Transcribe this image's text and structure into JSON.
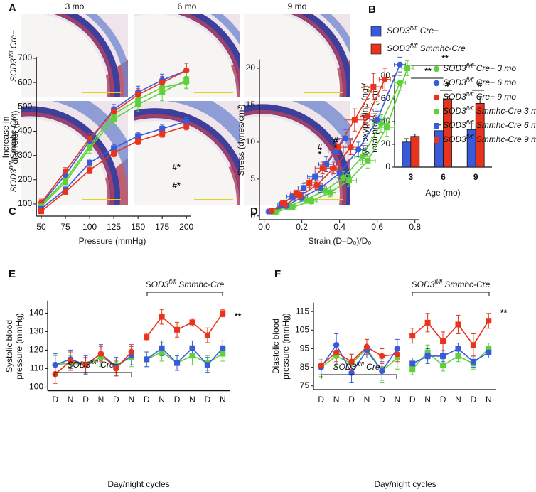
{
  "figure_a": {
    "label": "A",
    "columns": [
      "3 mo",
      "6 mo",
      "9 mo"
    ],
    "rows": [
      "SOD3fl/fl Cre−",
      "SOD3fl/fl Smmhc-Cre"
    ]
  },
  "chart_data": [
    {
      "panel": "B",
      "type": "bar",
      "categories": [
        "3",
        "6",
        "9"
      ],
      "series": [
        {
          "name": "SOD3fl/fl Cre−",
          "color": "#3a5bd9",
          "values": [
            22,
            32,
            33
          ],
          "errors": [
            3,
            5,
            5
          ]
        },
        {
          "name": "SOD3fl/fl Smmhc-Cre",
          "color": "#e8341c",
          "values": [
            27,
            60,
            56
          ],
          "errors": [
            2,
            2,
            6
          ]
        }
      ],
      "ylim": [
        0,
        80
      ],
      "yticks": [
        0,
        20,
        40,
        60,
        80
      ],
      "ylabel": [
        "Hydroxyproline (ng)/",
        "total protein (μg)"
      ],
      "xlabel": "Age (mo)",
      "annotations": [
        {
          "text": "**"
        },
        {
          "text": "**"
        },
        {
          "text": "#"
        },
        {
          "text": "#"
        }
      ]
    },
    {
      "panel": "C",
      "type": "line",
      "x": [
        50,
        75,
        100,
        125,
        150,
        175,
        200
      ],
      "xlim": [
        45,
        205
      ],
      "xticks": [
        50,
        75,
        100,
        125,
        150,
        175,
        200
      ],
      "ylim": [
        50,
        700
      ],
      "yticks": [
        100,
        200,
        300,
        400,
        500,
        600,
        700
      ],
      "ylabel": [
        "Increase in",
        "diameter (μm)"
      ],
      "xlabel": "Pressure (mmHg)",
      "series": [
        {
          "color": "#5ed13a",
          "marker": "circle",
          "values": [
            95,
            200,
            340,
            470,
            530,
            580,
            600
          ],
          "errors": [
            15,
            15,
            20,
            25,
            25,
            30,
            25
          ]
        },
        {
          "color": "#3a5bd9",
          "marker": "circle",
          "values": [
            100,
            220,
            360,
            490,
            560,
            610,
            650
          ],
          "errors": [
            15,
            15,
            20,
            20,
            25,
            25,
            30
          ]
        },
        {
          "color": "#e8341c",
          "marker": "circle",
          "values": [
            105,
            235,
            370,
            480,
            550,
            600,
            650
          ],
          "errors": [
            15,
            15,
            20,
            20,
            25,
            25,
            30
          ]
        },
        {
          "color": "#5ed13a",
          "marker": "square",
          "values": [
            90,
            190,
            330,
            450,
            510,
            560,
            610
          ],
          "errors": [
            15,
            15,
            20,
            25,
            30,
            35,
            30
          ]
        },
        {
          "color": "#3a5bd9",
          "marker": "square",
          "values": [
            80,
            160,
            270,
            330,
            380,
            410,
            440
          ],
          "errors": [
            10,
            10,
            15,
            15,
            15,
            15,
            15
          ]
        },
        {
          "color": "#e8341c",
          "marker": "square",
          "values": [
            70,
            150,
            240,
            310,
            360,
            390,
            420
          ],
          "errors": [
            10,
            10,
            15,
            15,
            15,
            15,
            15
          ]
        }
      ],
      "annotations": [
        {
          "text": "#*",
          "color": "#3a5bd9"
        },
        {
          "text": "#*",
          "color": "#e8341c"
        }
      ]
    },
    {
      "panel": "D",
      "type": "line",
      "xlim": [
        -0.025,
        0.82
      ],
      "xticks": [
        {
          "value": 0,
          "label": "0.0"
        },
        0.2,
        0.4,
        0.6,
        0.8
      ],
      "ylim": [
        -0.5,
        21
      ],
      "yticks": [
        0,
        5,
        10,
        15,
        20
      ],
      "ylabel": [
        "Stress (dynes/cm²)"
      ],
      "xlabel": "Strain (D–D₀)/D₀",
      "series": [
        {
          "name": "SOD3fl/fl Cre− 3 mo",
          "color": "#5ed13a",
          "marker": "circle",
          "x": [
            0.05,
            0.13,
            0.22,
            0.32,
            0.42,
            0.52,
            0.62,
            0.72
          ],
          "values": [
            0.6,
            1.3,
            2.2,
            3.4,
            5.2,
            8,
            12.5,
            18
          ],
          "errors": [
            0.3,
            0.4,
            0.5,
            0.6,
            0.8,
            1,
            1.2,
            1
          ],
          "x_errors": [
            0.02,
            0.02,
            0.03,
            0.03,
            0.04,
            0.04,
            0.04,
            0.03
          ]
        },
        {
          "name": "SOD3fl/fl Cre− 6 mo",
          "color": "#3a5bd9",
          "marker": "circle",
          "x": [
            0.04,
            0.12,
            0.2,
            0.3,
            0.4,
            0.5,
            0.6,
            0.72
          ],
          "values": [
            0.6,
            1.4,
            2.5,
            3.8,
            5.8,
            9,
            13,
            20.5
          ],
          "errors": [
            0.3,
            0.4,
            0.5,
            0.6,
            0.8,
            1,
            1.2,
            1
          ],
          "x_errors": [
            0.02,
            0.02,
            0.03,
            0.03,
            0.04,
            0.04,
            0.04,
            0.03
          ]
        },
        {
          "name": "SOD3fl/fl Cre− 9 mo",
          "color": "#e8341c",
          "marker": "circle",
          "x": [
            0.04,
            0.11,
            0.19,
            0.28,
            0.37,
            0.46,
            0.55,
            0.64
          ],
          "values": [
            0.7,
            1.5,
            2.7,
            4.2,
            6.5,
            9.3,
            13.5,
            18.5
          ],
          "errors": [
            0.3,
            0.4,
            0.5,
            0.6,
            0.8,
            1,
            1.2,
            1.5
          ],
          "x_errors": [
            0.02,
            0.02,
            0.03,
            0.03,
            0.04,
            0.04,
            0.04,
            0.03
          ]
        },
        {
          "name": "SOD3fl/fl Smmhc-Cre 3 mo",
          "color": "#5ed13a",
          "marker": "square",
          "x": [
            0.06,
            0.15,
            0.25,
            0.35,
            0.45,
            0.55,
            0.65,
            0.76
          ],
          "values": [
            0.5,
            1.2,
            2,
            3.2,
            4.8,
            7.5,
            12,
            20
          ],
          "errors": [
            0.3,
            0.4,
            0.5,
            0.6,
            0.8,
            1,
            1.2,
            1
          ],
          "x_errors": [
            0.02,
            0.02,
            0.03,
            0.03,
            0.04,
            0.04,
            0.04,
            0.03
          ]
        },
        {
          "name": "SOD3fl/fl Smmhc-Cre 6 mo",
          "color": "#3a5bd9",
          "marker": "square",
          "x": [
            0.03,
            0.09,
            0.15,
            0.21,
            0.27,
            0.33,
            0.38,
            0.43
          ],
          "values": [
            0.6,
            1.5,
            2.6,
            3.8,
            5.3,
            7,
            8.8,
            10.5
          ],
          "errors": [
            0.3,
            0.4,
            0.5,
            0.6,
            0.8,
            1,
            1.2,
            1.2
          ],
          "x_errors": [
            0.02,
            0.02,
            0.03,
            0.03,
            0.04,
            0.04,
            0.04,
            0.04
          ]
        },
        {
          "name": "SOD3fl/fl Smmhc-Cre 9 mo",
          "color": "#e8341c",
          "marker": "square",
          "x": [
            0.04,
            0.1,
            0.17,
            0.24,
            0.31,
            0.39,
            0.48,
            0.58
          ],
          "values": [
            0.7,
            1.7,
            3,
            4.5,
            6.5,
            9.3,
            13,
            17.5
          ],
          "errors": [
            0.3,
            0.4,
            0.5,
            0.6,
            0.8,
            1,
            1.5,
            1.8
          ],
          "x_errors": [
            0.02,
            0.02,
            0.03,
            0.03,
            0.04,
            0.04,
            0.05,
            0.05
          ]
        }
      ],
      "annotations": [
        {
          "text": "#",
          "color": "#3a5bd9"
        },
        {
          "text": "*",
          "color": "#3a5bd9"
        },
        {
          "text": "#",
          "color": "#e8341c"
        },
        {
          "text": "*",
          "color": "#e8341c"
        }
      ]
    },
    {
      "panel": "E",
      "type": "line",
      "categories": [
        "D",
        "N",
        "D",
        "N",
        "D",
        "N",
        "D",
        "N",
        "D",
        "N",
        "D",
        "N"
      ],
      "ylim": [
        98,
        146
      ],
      "yticks": [
        100,
        110,
        120,
        130,
        140
      ],
      "ylabel": [
        "Systolic blood",
        "pressure (mmHg)"
      ],
      "xlabel": "Day/night cycles",
      "brackets": [
        "SOD3fl/fl Cre−",
        "SOD3fl/fl Smmhc-Cre"
      ],
      "series": [
        {
          "color": "#5ed13a",
          "marker": "circle",
          "values": [
            112,
            113,
            112,
            116,
            112,
            116,
            null,
            null,
            null,
            null,
            null,
            null
          ],
          "errors": [
            5,
            4,
            5,
            5,
            4,
            5,
            null,
            null,
            null,
            null,
            null,
            null
          ]
        },
        {
          "color": "#3a5bd9",
          "marker": "circle",
          "values": [
            112,
            115,
            112,
            118,
            111,
            117,
            null,
            null,
            null,
            null,
            null,
            null
          ],
          "errors": [
            6,
            5,
            5,
            5,
            5,
            5,
            null,
            null,
            null,
            null,
            null,
            null
          ]
        },
        {
          "color": "#e8341c",
          "marker": "circle",
          "values": [
            107,
            114,
            112,
            118,
            110,
            119,
            null,
            null,
            null,
            null,
            null,
            null
          ],
          "errors": [
            5,
            5,
            4,
            4,
            4,
            4,
            null,
            null,
            null,
            null,
            null,
            null
          ]
        },
        {
          "color": "#5ed13a",
          "marker": "square",
          "values": [
            null,
            null,
            null,
            null,
            null,
            null,
            115,
            119,
            113,
            117,
            113,
            118
          ],
          "errors": [
            null,
            null,
            null,
            null,
            null,
            null,
            4,
            5,
            4,
            5,
            4,
            4
          ]
        },
        {
          "color": "#3a5bd9",
          "marker": "square",
          "values": [
            null,
            null,
            null,
            null,
            null,
            null,
            115,
            121,
            113,
            121,
            112,
            121
          ],
          "errors": [
            null,
            null,
            null,
            null,
            null,
            null,
            4,
            4,
            4,
            4,
            4,
            4
          ]
        },
        {
          "color": "#e8341c",
          "marker": "square",
          "values": [
            null,
            null,
            null,
            null,
            null,
            null,
            127,
            138,
            131,
            135,
            128,
            140
          ],
          "errors": [
            null,
            null,
            null,
            null,
            null,
            null,
            2,
            4,
            4,
            2,
            4,
            2
          ]
        }
      ],
      "annotations": [
        {
          "text": "**"
        }
      ]
    },
    {
      "panel": "F",
      "type": "line",
      "categories": [
        "D",
        "N",
        "D",
        "N",
        "D",
        "N",
        "D",
        "N",
        "D",
        "N",
        "D",
        "N"
      ],
      "ylim": [
        73,
        119
      ],
      "yticks": [
        75,
        85,
        95,
        105,
        115
      ],
      "ylabel": [
        "Diastolic blood",
        "pressure (mmHg)"
      ],
      "xlabel": "Day/night cycles",
      "brackets": [
        "SOD3fl/fl Cre−",
        "SOD3fl/fl Smmhc-Cre"
      ],
      "series": [
        {
          "color": "#5ed13a",
          "marker": "circle",
          "values": [
            85,
            91,
            87,
            95,
            83,
            90,
            null,
            null,
            null,
            null,
            null,
            null
          ],
          "errors": [
            5,
            6,
            5,
            5,
            6,
            6,
            null,
            null,
            null,
            null,
            null,
            null
          ]
        },
        {
          "color": "#3a5bd9",
          "marker": "circle",
          "values": [
            85,
            97,
            82,
            94,
            83,
            95,
            null,
            null,
            null,
            null,
            null,
            null
          ],
          "errors": [
            4,
            6,
            5,
            4,
            5,
            5,
            null,
            null,
            null,
            null,
            null,
            null
          ]
        },
        {
          "color": "#e8341c",
          "marker": "circle",
          "values": [
            86,
            93,
            88,
            96,
            91,
            92,
            null,
            null,
            null,
            null,
            null,
            null
          ],
          "errors": [
            4,
            5,
            4,
            4,
            4,
            4,
            null,
            null,
            null,
            null,
            null,
            null
          ]
        },
        {
          "color": "#5ed13a",
          "marker": "square",
          "values": [
            null,
            null,
            null,
            null,
            null,
            null,
            84,
            93,
            86,
            91,
            87,
            95
          ],
          "errors": [
            null,
            null,
            null,
            null,
            null,
            null,
            3,
            4,
            3,
            3,
            3,
            3
          ]
        },
        {
          "color": "#3a5bd9",
          "marker": "square",
          "values": [
            null,
            null,
            null,
            null,
            null,
            null,
            87,
            91,
            91,
            95,
            88,
            93
          ],
          "errors": [
            null,
            null,
            null,
            null,
            null,
            null,
            3,
            4,
            3,
            3,
            3,
            3
          ]
        },
        {
          "color": "#e8341c",
          "marker": "square",
          "values": [
            null,
            null,
            null,
            null,
            null,
            null,
            102,
            109,
            99,
            108,
            97,
            110
          ],
          "errors": [
            null,
            null,
            null,
            null,
            null,
            null,
            4,
            5,
            5,
            5,
            6,
            4
          ]
        }
      ],
      "annotations": [
        {
          "text": "**"
        }
      ]
    }
  ]
}
